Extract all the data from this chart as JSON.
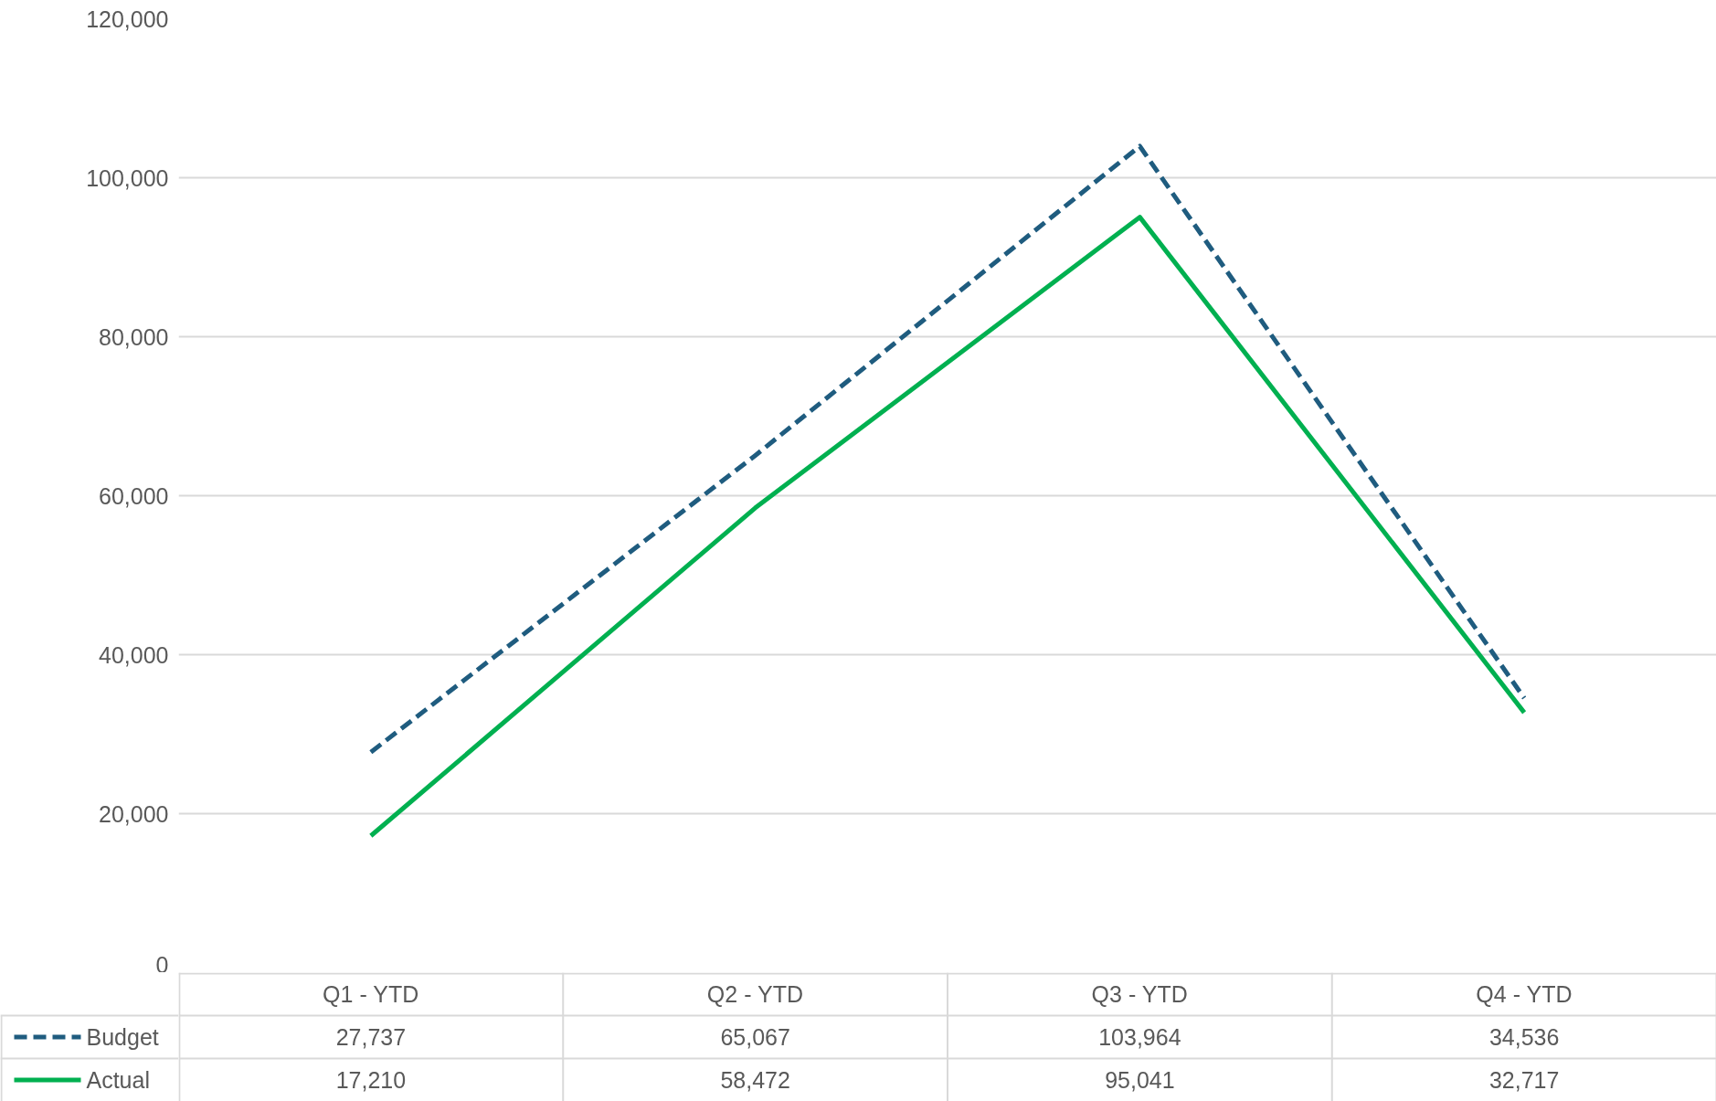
{
  "chart_data": {
    "type": "line",
    "categories": [
      "Q1 - YTD",
      "Q2 - YTD",
      "Q3 - YTD",
      "Q4 - YTD"
    ],
    "series": [
      {
        "name": "Budget",
        "color": "#1f5c7f",
        "values": [
          27737,
          65067,
          103964,
          34536
        ],
        "value_labels": [
          "27,737",
          "65,067",
          "103,964",
          "34,536"
        ],
        "line_style": "dashed"
      },
      {
        "name": "Actual",
        "color": "#00b050",
        "values": [
          17210,
          58472,
          95041,
          32717
        ],
        "value_labels": [
          "17,210",
          "58,472",
          "95,041",
          "32,717"
        ],
        "line_style": "solid"
      }
    ],
    "ylim": [
      0,
      120000
    ],
    "yticks": [
      0,
      {
        "value": 20000,
        "label": "20,000"
      },
      {
        "value": 40000,
        "label": "40,000"
      },
      {
        "value": 60000,
        "label": "60,000"
      },
      {
        "value": 80000,
        "label": "80,000"
      },
      {
        "value": 100000,
        "label": "100,000"
      },
      {
        "value": 120000,
        "label": "120,000"
      }
    ],
    "grid": "y",
    "legend": "bottom left"
  }
}
